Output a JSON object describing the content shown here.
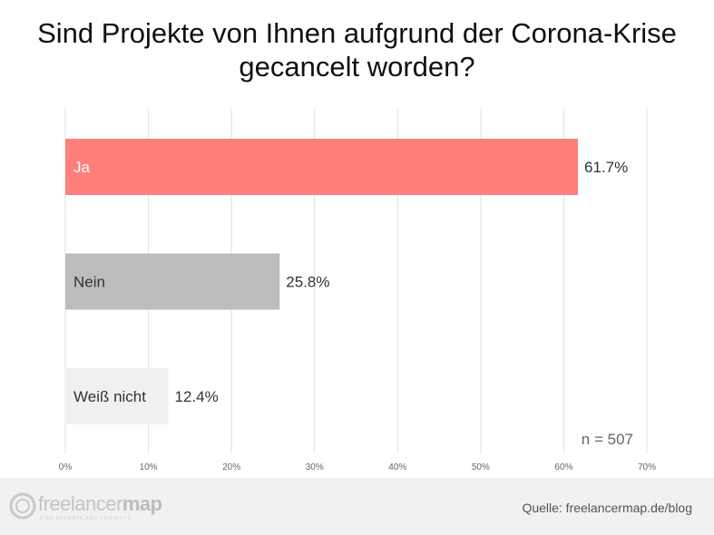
{
  "chart_data": {
    "type": "bar",
    "orientation": "horizontal",
    "title": "Sind Projekte von Ihnen aufgrund der Corona-Krise gecancelt worden?",
    "categories": [
      "Ja",
      "Nein",
      "Weiß nicht"
    ],
    "values": [
      61.7,
      25.8,
      12.4
    ],
    "value_labels": [
      "61.7%",
      "25.8%",
      "12.4%"
    ],
    "colors": [
      "#ff7f7a",
      "#bdbdbd",
      "#f0f0f0"
    ],
    "label_colors": [
      "#ffffff",
      "#333333",
      "#333333"
    ],
    "xlim": [
      0,
      70
    ],
    "xticks": [
      0,
      10,
      20,
      30,
      40,
      50,
      60,
      70
    ],
    "xtick_labels": [
      "0%",
      "10%",
      "20%",
      "30%",
      "40%",
      "50%",
      "60%",
      "70%"
    ],
    "grid": true,
    "annotation": "n = 507"
  },
  "footer": {
    "logo_text_light": "freelancer",
    "logo_text_bold": "map",
    "logo_tagline": "FIND EXPERTS AND PROJECTS",
    "source": "Quelle: freelancermap.de/blog"
  }
}
